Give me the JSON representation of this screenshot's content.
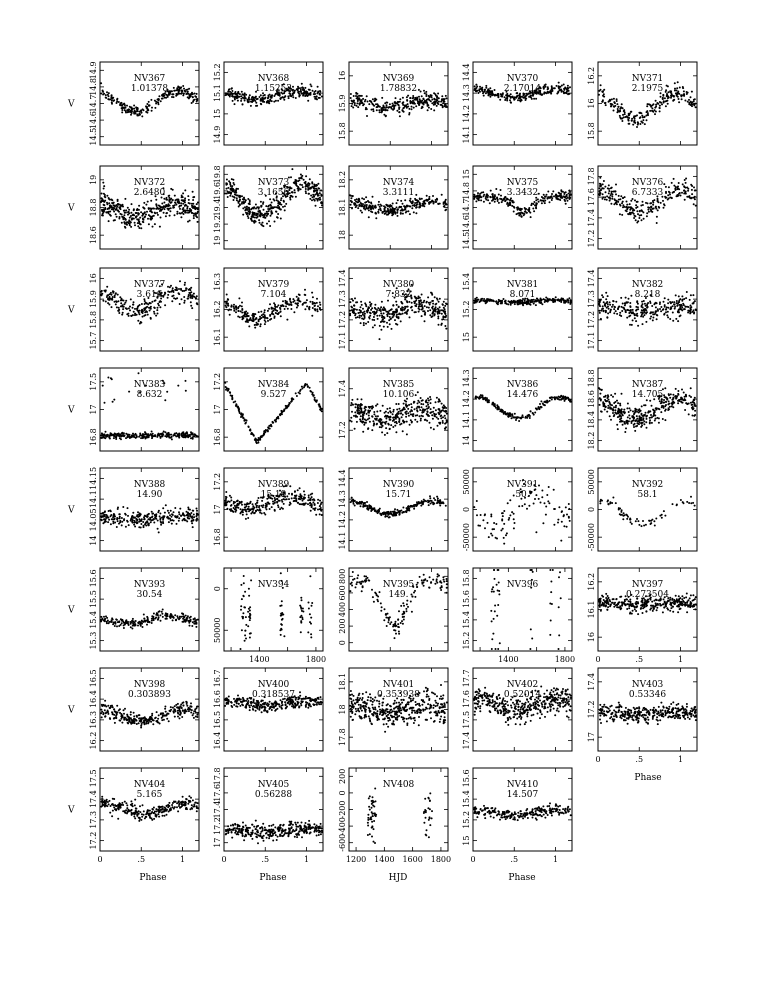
{
  "figure": {
    "row_ylabel": "V",
    "xlabel_phase": "Phase",
    "xlabel_hjd": "HJD"
  },
  "chart_data": [
    {
      "type": "scatter",
      "name": "NV367",
      "period": "1.01378",
      "xlabel": "",
      "ylabel": "V",
      "xlim": [
        0,
        1.2
      ],
      "ylim": [
        14.9,
        14.5
      ],
      "ytick_labels": [
        "14.5",
        "14.6",
        "14.7",
        "14.8",
        "14.9"
      ],
      "xticks": [],
      "shape": {
        "kind": "sine",
        "mean": 14.69,
        "amp": 0.05,
        "phase0": 0.45,
        "scatter": 0.012,
        "n": 260
      }
    },
    {
      "type": "scatter",
      "name": "NV368",
      "period": "1.15252",
      "ylabel": "V",
      "xlim": [
        0,
        1.2
      ],
      "ylim": [
        15.3,
        14.9
      ],
      "ytick_labels": [
        "14.9",
        "15",
        "15.1",
        "15.2"
      ],
      "xticks": [],
      "shape": {
        "kind": "sine",
        "mean": 15.06,
        "amp": 0.02,
        "phase0": 0.4,
        "scatter": 0.015,
        "n": 300
      }
    },
    {
      "type": "scatter",
      "name": "NV369",
      "period": "1.78832",
      "ylabel": "V",
      "xlim": [
        0,
        1.2
      ],
      "ylim": [
        16.1,
        15.7
      ],
      "ytick_labels": [
        "15.8",
        "15.9",
        "16"
      ],
      "xticks": [],
      "shape": {
        "kind": "sine",
        "mean": 15.9,
        "amp": 0.015,
        "phase0": 0.5,
        "scatter": 0.02,
        "n": 320
      }
    },
    {
      "type": "scatter",
      "name": "NV370",
      "period": "2.17014",
      "ylabel": "V",
      "xlim": [
        0,
        1.2
      ],
      "ylim": [
        14.5,
        14.1
      ],
      "ytick_labels": [
        "14.1",
        "14.2",
        "14.3",
        "14.4"
      ],
      "xticks": [],
      "shape": {
        "kind": "sine",
        "mean": 14.25,
        "amp": 0.02,
        "phase0": 0.5,
        "scatter": 0.012,
        "n": 260
      }
    },
    {
      "type": "scatter",
      "name": "NV371",
      "period": "2.1975",
      "ylabel": "V",
      "xlim": [
        0,
        1.2
      ],
      "ylim": [
        16.4,
        15.6
      ],
      "ytick_labels": [
        "15.8",
        "16",
        "16.2"
      ],
      "xticks": [],
      "shape": {
        "kind": "sine",
        "mean": 16.02,
        "amp": 0.12,
        "phase0": 0.45,
        "scatter": 0.04,
        "n": 260
      }
    },
    {
      "type": "scatter",
      "name": "NV372",
      "period": "2.6480",
      "ylabel": "V",
      "xlim": [
        0,
        1.2
      ],
      "ylim": [
        19.1,
        18.2
      ],
      "ytick_labels": [
        "18.6",
        "18.8",
        "19"
      ],
      "xticks": [],
      "shape": {
        "kind": "sine",
        "mean": 18.68,
        "amp": 0.08,
        "phase0": 0.45,
        "scatter": 0.07,
        "n": 420
      }
    },
    {
      "type": "scatter",
      "name": "NV373",
      "period": "3.1656",
      "ylabel": "V",
      "xlim": [
        0,
        1.2
      ],
      "ylim": [
        19.9,
        18.9
      ],
      "ytick_labels": [
        "19",
        "19.2",
        "19.4",
        "19.6",
        "19.8"
      ],
      "xticks": [],
      "shape": {
        "kind": "sine",
        "mean": 19.3,
        "amp": 0.18,
        "phase0": 0.45,
        "scatter": 0.07,
        "n": 420
      }
    },
    {
      "type": "scatter",
      "name": "NV374",
      "period": "3.3111",
      "ylabel": "V",
      "xlim": [
        0,
        1.2
      ],
      "ylim": [
        18.3,
        17.95
      ],
      "ytick_labels": [
        "18",
        "18.1",
        "18.2"
      ],
      "xticks": [],
      "shape": {
        "kind": "sine",
        "mean": 18.12,
        "amp": 0.02,
        "phase0": 0.45,
        "scatter": 0.015,
        "n": 300
      }
    },
    {
      "type": "scatter",
      "name": "NV375",
      "period": "3.3432",
      "ylabel": "V",
      "xlim": [
        0,
        1.2
      ],
      "ylim": [
        15,
        14.4
      ],
      "ytick_labels": [
        "14.5",
        "14.6",
        "14.7",
        "14.8",
        "15"
      ],
      "xticks": [],
      "shape": {
        "kind": "dip",
        "mean": 14.62,
        "amp": 0.12,
        "phase0": 0.62,
        "width": 0.12,
        "scatter": 0.02,
        "n": 260
      }
    },
    {
      "type": "scatter",
      "name": "NV376",
      "period": "6.7333",
      "ylabel": "V",
      "xlim": [
        0,
        1.2
      ],
      "ylim": [
        17.8,
        17.2
      ],
      "ytick_labels": [
        "17.2",
        "17.4",
        "17.6",
        "17.8"
      ],
      "xticks": [],
      "shape": {
        "kind": "sine",
        "mean": 17.45,
        "amp": 0.08,
        "phase0": 0.5,
        "scatter": 0.04,
        "n": 260
      }
    },
    {
      "type": "scatter",
      "name": "NV377",
      "period": "3.616",
      "ylabel": "V",
      "xlim": [
        0,
        1.2
      ],
      "ylim": [
        16,
        15.7
      ],
      "ytick_labels": [
        "15.7",
        "15.8",
        "15.9",
        "16"
      ],
      "xticks": [],
      "shape": {
        "kind": "sine",
        "mean": 15.82,
        "amp": 0.035,
        "phase0": 0.45,
        "scatter": 0.02,
        "n": 260
      }
    },
    {
      "type": "scatter",
      "name": "NV379",
      "period": "7.104",
      "ylabel": "V",
      "xlim": [
        0,
        1.2
      ],
      "ylim": [
        16.35,
        16.05
      ],
      "ytick_labels": [
        "16.1",
        "16.2",
        "16.3"
      ],
      "xticks": [],
      "shape": {
        "kind": "sine",
        "mean": 16.2,
        "amp": 0.03,
        "phase0": 0.4,
        "scatter": 0.015,
        "n": 260
      }
    },
    {
      "type": "scatter",
      "name": "NV380",
      "period": "7.832",
      "ylabel": "V",
      "xlim": [
        0,
        1.2
      ],
      "ylim": [
        17.45,
        17.05
      ],
      "ytick_labels": [
        "17.1",
        "17.2",
        "17.3",
        "17.4"
      ],
      "xticks": [],
      "shape": {
        "kind": "sine",
        "mean": 17.25,
        "amp": 0.03,
        "phase0": 0.3,
        "scatter": 0.035,
        "n": 380
      }
    },
    {
      "type": "scatter",
      "name": "NV381",
      "period": "8.071",
      "ylabel": "V",
      "xlim": [
        0,
        1.2
      ],
      "ylim": [
        15.4,
        14.9
      ],
      "ytick_labels": [
        "15",
        "15.2",
        "15.4"
      ],
      "xticks": [],
      "shape": {
        "kind": "sine",
        "mean": 15.1,
        "amp": 0.005,
        "phase0": 0.5,
        "scatter": 0.008,
        "n": 260
      }
    },
    {
      "type": "scatter",
      "name": "NV382",
      "period": "8.218",
      "ylabel": "V",
      "xlim": [
        0,
        1.2
      ],
      "ylim": [
        17.5,
        17.05
      ],
      "ytick_labels": [
        "17.1",
        "17.2",
        "17.3",
        "17.4"
      ],
      "xticks": [],
      "shape": {
        "kind": "sine",
        "mean": 17.27,
        "amp": 0.015,
        "phase0": 0.5,
        "scatter": 0.03,
        "n": 300
      }
    },
    {
      "type": "scatter",
      "name": "NV383",
      "period": "8.632",
      "ylabel": "V",
      "xlim": [
        0,
        1.2
      ],
      "ylim": [
        17.65,
        16.85
      ],
      "ytick_labels": [
        "16.8",
        "17",
        "17.5"
      ],
      "xticks": [],
      "shape": {
        "kind": "flat_outliers",
        "mean": 17.5,
        "amp": 0,
        "phase0": 0.5,
        "scatter": 0.015,
        "n": 280
      }
    },
    {
      "type": "scatter",
      "name": "NV384",
      "period": "9.527",
      "ylabel": "V",
      "xlim": [
        0,
        1.2
      ],
      "ylim": [
        17.25,
        16.6
      ],
      "ytick_labels": [
        "16.8",
        "17",
        "17.2"
      ],
      "xticks": [],
      "shape": {
        "kind": "sawtooth",
        "mean": 16.95,
        "amp": 0.23,
        "phase0": 0.4,
        "scatter": 0.01,
        "n": 200
      }
    },
    {
      "type": "scatter",
      "name": "NV385",
      "period": "10.106",
      "ylabel": "V",
      "xlim": [
        0,
        1.2
      ],
      "ylim": [
        17.5,
        17.1
      ],
      "ytick_labels": [
        "17.2",
        "17.4"
      ],
      "xticks": [],
      "shape": {
        "kind": "sine",
        "mean": 17.32,
        "amp": 0.02,
        "phase0": 0.4,
        "scatter": 0.035,
        "n": 380
      }
    },
    {
      "type": "scatter",
      "name": "NV386",
      "period": "14.476",
      "ylabel": "V",
      "xlim": [
        0,
        1.2
      ],
      "ylim": [
        14.35,
        13.95
      ],
      "ytick_labels": [
        "14",
        "14.1",
        "14.2",
        "14.3"
      ],
      "xticks": [],
      "shape": {
        "kind": "sine",
        "mean": 14.14,
        "amp": 0.05,
        "phase0": 0.55,
        "scatter": 0.006,
        "n": 200
      }
    },
    {
      "type": "scatter",
      "name": "NV387",
      "period": "14.705",
      "ylabel": "V",
      "xlim": [
        0,
        1.2
      ],
      "ylim": [
        18.9,
        18.1
      ],
      "ytick_labels": [
        "18.2",
        "18.4",
        "18.6",
        "18.8"
      ],
      "xticks": [],
      "shape": {
        "kind": "sine",
        "mean": 18.5,
        "amp": 0.1,
        "phase0": 0.45,
        "scatter": 0.06,
        "n": 380
      }
    },
    {
      "type": "scatter",
      "name": "NV388",
      "period": "14.90",
      "ylabel": "V",
      "xlim": [
        0,
        1.2
      ],
      "ylim": [
        14.2,
        13.95
      ],
      "ytick_labels": [
        "14",
        "14.05",
        "14.1",
        "14.15"
      ],
      "xticks": [],
      "shape": {
        "kind": "sine",
        "mean": 14.1,
        "amp": 0.005,
        "phase0": 0.5,
        "scatter": 0.012,
        "n": 300
      }
    },
    {
      "type": "scatter",
      "name": "NV389",
      "period": "15.19",
      "ylabel": "V",
      "xlim": [
        0,
        1.2
      ],
      "ylim": [
        17.3,
        16.75
      ],
      "ytick_labels": [
        "16.8",
        "17",
        "17.2"
      ],
      "xticks": [],
      "shape": {
        "kind": "sine",
        "mean": 16.98,
        "amp": 0.04,
        "phase0": 0.3,
        "scatter": 0.03,
        "n": 300
      }
    },
    {
      "type": "scatter",
      "name": "NV390",
      "period": "15.71",
      "ylabel": "V",
      "xlim": [
        0,
        1.2
      ],
      "ylim": [
        14.45,
        14.05
      ],
      "ytick_labels": [
        "14.1",
        "14.2",
        "14.3",
        "14.4"
      ],
      "xticks": [],
      "shape": {
        "kind": "sine",
        "mean": 14.24,
        "amp": 0.03,
        "phase0": 0.5,
        "scatter": 0.008,
        "n": 240
      }
    },
    {
      "type": "scatter",
      "name": "NV391",
      "period": "50.",
      "ylabel": "V",
      "xlim": [
        0,
        1.2
      ],
      "ylim": [
        50000,
        -50000
      ],
      "ytick_labels": [
        "-50000",
        "0",
        "50000"
      ],
      "xticks": [],
      "shape": {
        "kind": "scattered",
        "mean": 0,
        "amp": 18000,
        "phase0": 0.55,
        "scatter": 12000,
        "n": 110
      }
    },
    {
      "type": "scatter",
      "name": "NV392",
      "period": "58.1",
      "ylabel": "V",
      "xlim": [
        0,
        1.2
      ],
      "ylim": [
        50000,
        -50000
      ],
      "ytick_labels": [
        "-50000",
        "0",
        "50000"
      ],
      "xticks": [],
      "shape": {
        "kind": "sine",
        "mean": 4000,
        "amp": 14000,
        "phase0": 0.55,
        "scatter": 3000,
        "n": 70
      }
    },
    {
      "type": "scatter",
      "name": "NV393",
      "period": "30.54",
      "ylabel": "V",
      "xlim": [
        0,
        1.2
      ],
      "ylim": [
        15.65,
        15.25
      ],
      "ytick_labels": [
        "15.3",
        "15.4",
        "15.5",
        "15.6"
      ],
      "xticks": [],
      "shape": {
        "kind": "sine",
        "mean": 15.5,
        "amp": 0.02,
        "phase0": 0.3,
        "scatter": 0.012,
        "n": 220
      }
    },
    {
      "type": "scatter",
      "name": "NV394",
      "period": "",
      "ylabel": "V",
      "xlim": [
        1150,
        1850
      ],
      "ylim": [
        -120000,
        80000
      ],
      "ytick_labels": [
        "50000",
        "0"
      ],
      "xticks": [
        1400,
        1800
      ],
      "xtick_labels": [
        "1400",
        "1800"
      ],
      "shape": {
        "kind": "hjd_blocks",
        "mean": -30000,
        "amp": 40000,
        "phase0": 0,
        "scatter": 20000,
        "n": 90
      }
    },
    {
      "type": "scatter",
      "name": "NV395",
      "period": "149.",
      "ylabel": "V",
      "xlim": [
        0,
        1.2
      ],
      "ylim": [
        1000,
        -200
      ],
      "ytick_labels": [
        "0",
        "200",
        "400",
        "600",
        "800"
      ],
      "xticks": [],
      "shape": {
        "kind": "deep_min",
        "mean": 0,
        "amp": 700,
        "phase0": 0.55,
        "scatter": 70,
        "n": 160
      }
    },
    {
      "type": "scatter",
      "name": "NV396",
      "period": "",
      "ylabel": "V",
      "xlim": [
        1150,
        1850
      ],
      "ylim": [
        15.8,
        15.1
      ],
      "ytick_labels": [
        "15.2",
        "15.4",
        "15.6",
        "15.8"
      ],
      "xticks": [
        1400,
        1800
      ],
      "xtick_labels": [
        "1400",
        "1800"
      ],
      "shape": {
        "kind": "hjd_sparse",
        "mean": 15.35,
        "amp": 0.3,
        "phase0": 0,
        "scatter": 0.03,
        "n": 50
      }
    },
    {
      "type": "scatter",
      "name": "NV397",
      "period": "0.273504",
      "ylabel": "V",
      "xlim": [
        0,
        1.2
      ],
      "ylim": [
        16.25,
        15.9
      ],
      "ytick_labels": [
        "16",
        "16.1",
        "16.2"
      ],
      "xticks": [
        0,
        0.5,
        1
      ],
      "xtick_labels": [
        "0",
        ".5",
        "1"
      ],
      "xlabel": "Phase",
      "shape": {
        "kind": "sine",
        "mean": 16.05,
        "amp": 0.005,
        "phase0": 0.5,
        "scatter": 0.015,
        "n": 340
      }
    },
    {
      "type": "scatter",
      "name": "NV398",
      "period": "0.303893",
      "ylabel": "V",
      "xlim": [
        0,
        1.2
      ],
      "ylim": [
        16.5,
        16.15
      ],
      "ytick_labels": [
        "16.2",
        "16.3",
        "16.4",
        "16.5"
      ],
      "xticks": [],
      "shape": {
        "kind": "sine",
        "mean": 16.35,
        "amp": 0.025,
        "phase0": 0.5,
        "scatter": 0.015,
        "n": 300
      }
    },
    {
      "type": "scatter",
      "name": "NV400",
      "period": "0.318537",
      "ylabel": "V",
      "xlim": [
        0,
        1.2
      ],
      "ylim": [
        16.75,
        16.35
      ],
      "ytick_labels": [
        "16.4",
        "16.5",
        "16.6",
        "16.7"
      ],
      "xticks": [],
      "shape": {
        "kind": "sine",
        "mean": 16.52,
        "amp": 0.01,
        "phase0": 0.5,
        "scatter": 0.015,
        "n": 320
      }
    },
    {
      "type": "scatter",
      "name": "NV401",
      "period": "0.353938",
      "ylabel": "V",
      "xlim": [
        0,
        1.2
      ],
      "ylim": [
        18.15,
        17.7
      ],
      "ytick_labels": [
        "17.8",
        "18",
        "18.1"
      ],
      "xticks": [],
      "shape": {
        "kind": "sine",
        "mean": 17.92,
        "amp": 0.015,
        "phase0": 0.5,
        "scatter": 0.04,
        "n": 420
      }
    },
    {
      "type": "scatter",
      "name": "NV402",
      "period": "0.52014",
      "ylabel": "V",
      "xlim": [
        0,
        1.2
      ],
      "ylim": [
        17.8,
        17.35
      ],
      "ytick_labels": [
        "17.4",
        "17.5",
        "17.6",
        "17.7"
      ],
      "xticks": [],
      "shape": {
        "kind": "sine",
        "mean": 17.55,
        "amp": 0.03,
        "phase0": 0.55,
        "scatter": 0.035,
        "n": 420
      }
    },
    {
      "type": "scatter",
      "name": "NV403",
      "period": "0.53346",
      "ylabel": "V",
      "xlim": [
        0,
        1.2
      ],
      "ylim": [
        17.45,
        16.9
      ],
      "ytick_labels": [
        "17",
        "17.2",
        "17.4"
      ],
      "xticks": [
        0,
        0.5,
        1
      ],
      "xtick_labels": [
        "0",
        ".5",
        "1"
      ],
      "xlabel": "Phase",
      "shape": {
        "kind": "sine",
        "mean": 17.2,
        "amp": 0.01,
        "phase0": 0.5,
        "scatter": 0.025,
        "n": 360
      }
    },
    {
      "type": "scatter",
      "name": "NV404",
      "period": "5.165",
      "ylabel": "V",
      "xlim": [
        0,
        1.2
      ],
      "ylim": [
        17.55,
        17.2
      ],
      "ytick_labels": [
        "17.2",
        "17.3",
        "17.4",
        "17.5"
      ],
      "xticks": [
        0,
        0.5,
        1
      ],
      "xtick_labels": [
        "0",
        ".5",
        "1"
      ],
      "xlabel": "Phase",
      "shape": {
        "kind": "sine",
        "mean": 17.37,
        "amp": 0.02,
        "phase0": 0.55,
        "scatter": 0.015,
        "n": 280
      }
    },
    {
      "type": "scatter",
      "name": "NV405",
      "period": "0.56288",
      "ylabel": "V",
      "xlim": [
        0,
        1.2
      ],
      "ylim": [
        17.9,
        17
      ],
      "ytick_labels": [
        "17",
        "17.2",
        "17.4",
        "17.6",
        "17.8"
      ],
      "xticks": [
        0,
        0.5,
        1
      ],
      "xtick_labels": [
        "0",
        ".5",
        "1"
      ],
      "xlabel": "Phase",
      "shape": {
        "kind": "sine",
        "mean": 17.68,
        "amp": 0.01,
        "phase0": 0.5,
        "scatter": 0.04,
        "n": 360
      }
    },
    {
      "type": "scatter",
      "name": "NV408",
      "period": "",
      "ylabel": "V",
      "xlim": [
        1150,
        1850
      ],
      "ylim": [
        800,
        -600
      ],
      "ytick_labels": [
        "-600",
        "-400",
        "-200",
        "0",
        "200"
      ],
      "xticks": [
        1200,
        1400,
        1600,
        1800
      ],
      "xtick_labels": [
        "1200",
        "1400",
        "1600",
        "1800"
      ],
      "xlabel": "HJD",
      "shape": {
        "kind": "hjd_column",
        "mean": 200,
        "amp": 200,
        "phase0": 0,
        "scatter": 80,
        "n": 70
      }
    },
    {
      "type": "scatter",
      "name": "NV410",
      "period": "14.507",
      "ylabel": "V",
      "xlim": [
        0,
        1.2
      ],
      "ylim": [
        15.6,
        14.95
      ],
      "ytick_labels": [
        "15",
        "15.2",
        "15.4",
        "15.6"
      ],
      "xticks": [
        0,
        0.5,
        1
      ],
      "xtick_labels": [
        "0",
        ".5",
        "1"
      ],
      "xlabel": "Phase",
      "shape": {
        "kind": "sine",
        "mean": 15.3,
        "amp": 0.02,
        "phase0": 0.5,
        "scatter": 0.02,
        "n": 240
      }
    }
  ]
}
